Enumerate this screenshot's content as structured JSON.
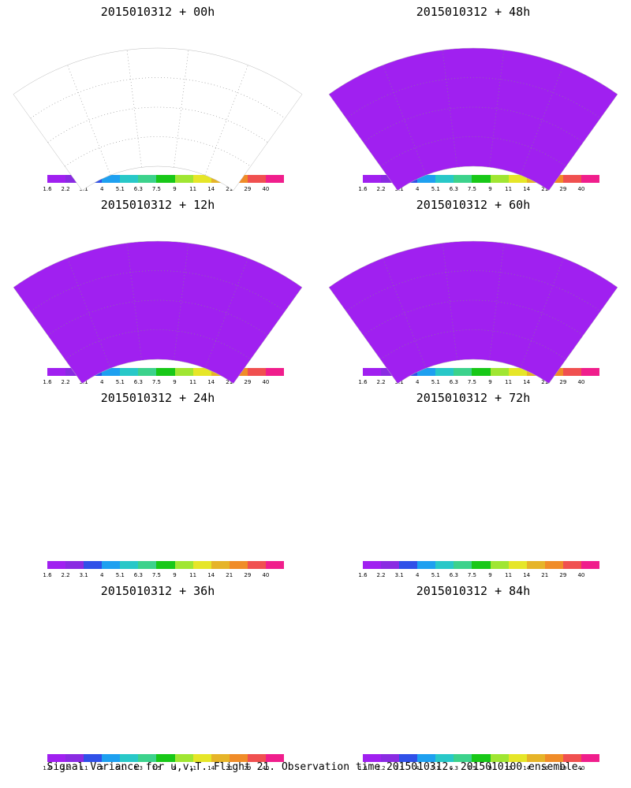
{
  "panels": [
    {
      "title": "2015010312 + 00h",
      "lead": 0
    },
    {
      "title": "2015010312 + 48h",
      "lead": 48
    },
    {
      "title": "2015010312 + 12h",
      "lead": 12
    },
    {
      "title": "2015010312 + 60h",
      "lead": 60
    },
    {
      "title": "2015010312 + 24h",
      "lead": 24
    },
    {
      "title": "2015010312 + 72h",
      "lead": 72
    },
    {
      "title": "2015010312 + 36h",
      "lead": 36
    },
    {
      "title": "2015010312 + 84h",
      "lead": 84
    }
  ],
  "colorbar": {
    "labels": [
      "1.6",
      "2.2",
      "3.1",
      "4",
      "5.1",
      "6.3",
      "7.5",
      "9",
      "11",
      "14",
      "21",
      "29",
      "40"
    ],
    "colors": [
      "#a020f0",
      "#8a2be2",
      "#3050e8",
      "#1ea0f0",
      "#28c8c8",
      "#3cd28c",
      "#18c818",
      "#a0e632",
      "#e6e628",
      "#e6b428",
      "#f08c28",
      "#f05050",
      "#f01e8c"
    ]
  },
  "footer": "Signal Variance for u,v,T. Flight 21. Observation time 2015010312. 2015010100 ensemble.",
  "chart_data": {
    "type": "heatmap",
    "map_projection": "polar-stereographic sector",
    "color_scale_breaks": [
      1.6,
      2.2,
      3.1,
      4,
      5.1,
      6.3,
      7.5,
      9,
      11,
      14,
      21,
      29,
      40
    ],
    "panels_layout": "4 rows x 2 columns",
    "lead_times_h": [
      0,
      12,
      24,
      36,
      48,
      60,
      72,
      84
    ]
  }
}
